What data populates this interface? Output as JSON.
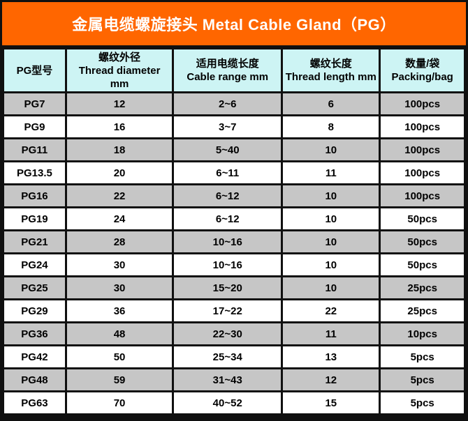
{
  "title": "金属电缆螺旋接头 Metal Cable Gland（PG）",
  "colors": {
    "banner_orange": "#ff6600",
    "header_cyan": "#cdf4f4",
    "row_gray": "#c6c6c6",
    "row_white": "#ffffff",
    "border_black": "#101010",
    "title_text": "#ffffff",
    "cell_text": "#000000"
  },
  "table": {
    "columns": [
      {
        "lines": [
          "PG型号"
        ]
      },
      {
        "lines": [
          "螺纹外径",
          "Thread diameter",
          "mm"
        ]
      },
      {
        "lines": [
          "适用电缆长度",
          "Cable range mm"
        ]
      },
      {
        "lines": [
          "螺纹长度",
          "Thread length mm"
        ]
      },
      {
        "lines": [
          "数量/袋",
          "Packing/bag"
        ]
      }
    ],
    "rows": [
      [
        "PG7",
        "12",
        "2~6",
        "6",
        "100pcs"
      ],
      [
        "PG9",
        "16",
        "3~7",
        "8",
        "100pcs"
      ],
      [
        "PG11",
        "18",
        "5~40",
        "10",
        "100pcs"
      ],
      [
        "PG13.5",
        "20",
        "6~11",
        "11",
        "100pcs"
      ],
      [
        "PG16",
        "22",
        "6~12",
        "10",
        "100pcs"
      ],
      [
        "PG19",
        "24",
        "6~12",
        "10",
        "50pcs"
      ],
      [
        "PG21",
        "28",
        "10~16",
        "10",
        "50pcs"
      ],
      [
        "PG24",
        "30",
        "10~16",
        "10",
        "50pcs"
      ],
      [
        "PG25",
        "30",
        "15~20",
        "10",
        "25pcs"
      ],
      [
        "PG29",
        "36",
        "17~22",
        "22",
        "25pcs"
      ],
      [
        "PG36",
        "48",
        "22~30",
        "11",
        "10pcs"
      ],
      [
        "PG42",
        "50",
        "25~34",
        "13",
        "5pcs"
      ],
      [
        "PG48",
        "59",
        "31~43",
        "12",
        "5pcs"
      ],
      [
        "PG63",
        "70",
        "40~52",
        "15",
        "5pcs"
      ]
    ]
  }
}
